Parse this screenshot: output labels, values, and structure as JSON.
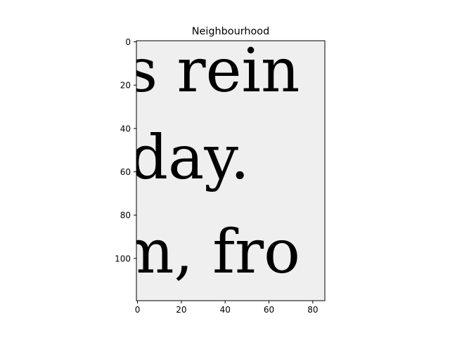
{
  "chart_data": {
    "type": "heatmap",
    "title": "Neighbourhood",
    "xlabel": "",
    "ylabel": "",
    "colormap": "gray",
    "grid": false,
    "legend": "none",
    "x_range": [
      -0.5,
      85.5
    ],
    "y_range": [
      119.5,
      -0.5
    ],
    "y_inverted": true,
    "x_ticks": [
      0,
      20,
      40,
      60,
      80
    ],
    "x_tick_labels": [
      "0",
      "20",
      "40",
      "60",
      "80"
    ],
    "y_ticks": [
      0,
      20,
      40,
      60,
      80,
      100
    ],
    "y_tick_labels": [
      "0",
      "20",
      "40",
      "60",
      "80",
      "100"
    ],
    "image_content": {
      "text_lines": [
        "s rein",
        "day.",
        "m, fro"
      ],
      "background_color": "#efefef",
      "ink_color": "#1a1a1a"
    }
  }
}
